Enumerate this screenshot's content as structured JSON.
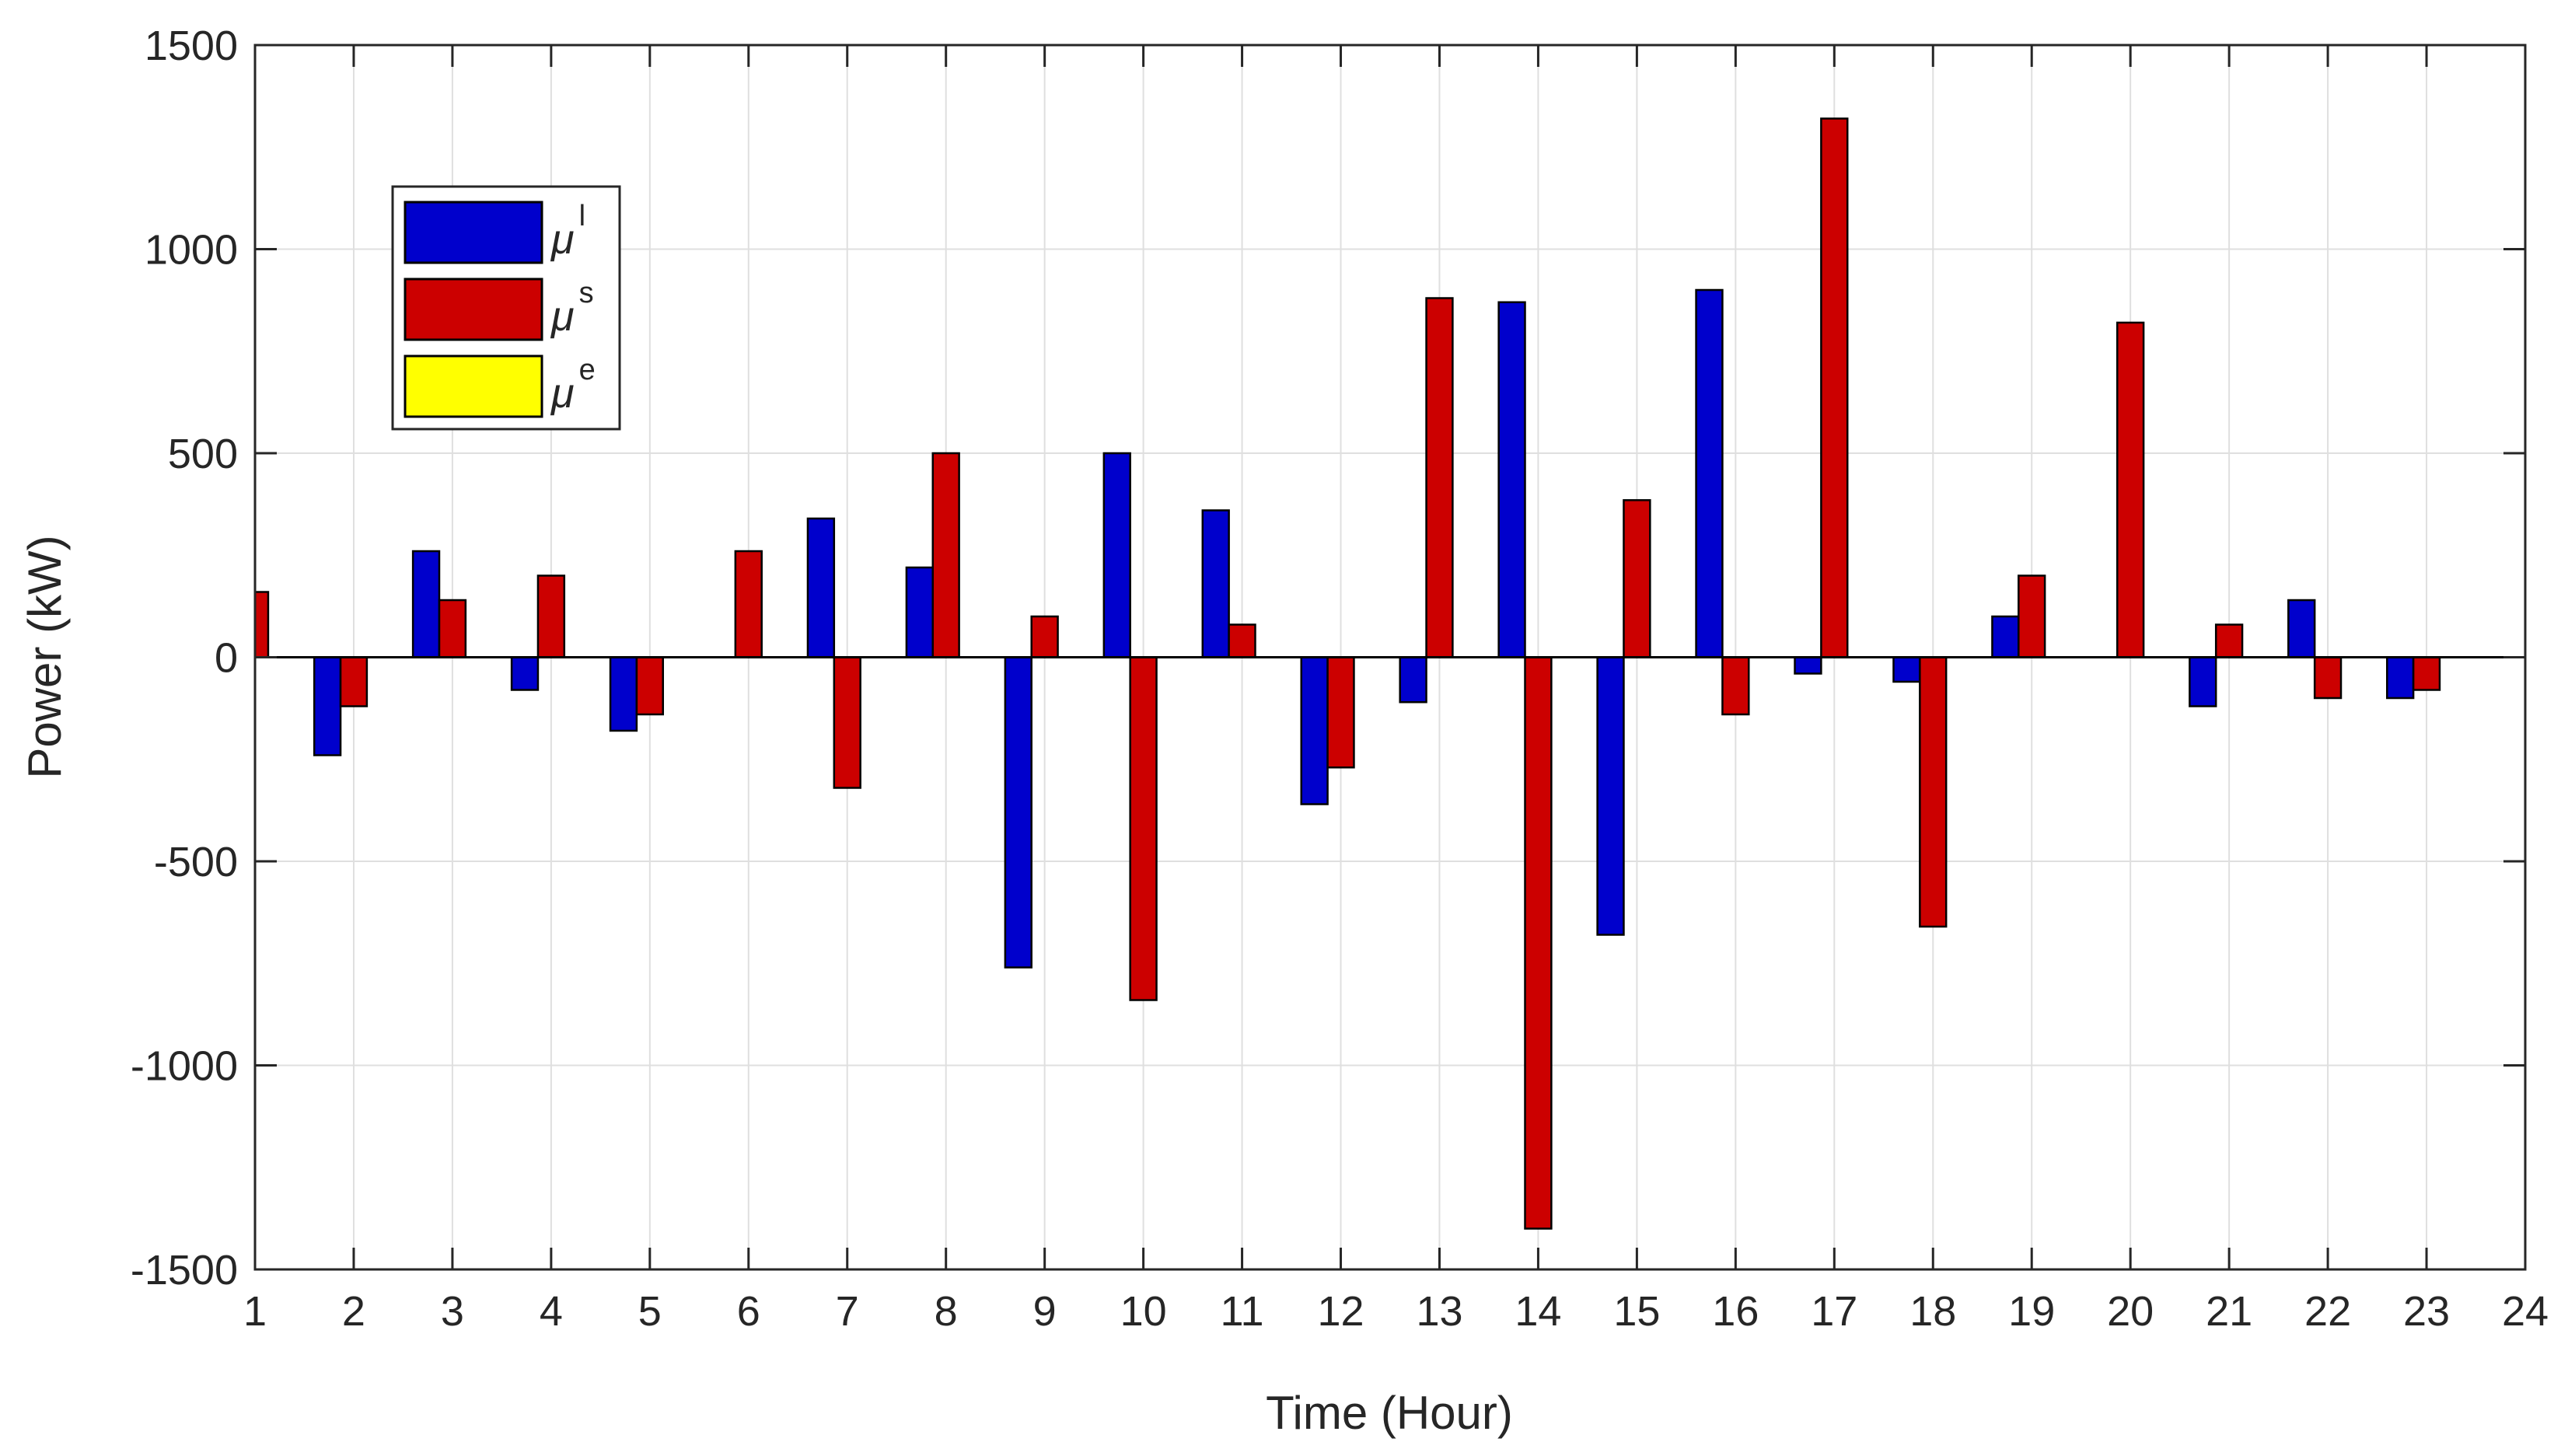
{
  "chart_data": {
    "type": "bar",
    "xlabel": "Time (Hour)",
    "ylabel": "Power (kW)",
    "xlim": [
      1,
      24
    ],
    "ylim": [
      -1500,
      1500
    ],
    "x_ticks": [
      1,
      2,
      3,
      4,
      5,
      6,
      7,
      8,
      9,
      10,
      11,
      12,
      13,
      14,
      15,
      16,
      17,
      18,
      19,
      20,
      21,
      22,
      23,
      24
    ],
    "y_ticks": [
      -1500,
      -1000,
      -500,
      0,
      500,
      1000,
      1500
    ],
    "grid": true,
    "legend_position": "top-left",
    "categories": [
      1,
      2,
      3,
      4,
      5,
      6,
      7,
      8,
      9,
      10,
      11,
      12,
      13,
      14,
      15,
      16,
      17,
      18,
      19,
      20,
      21,
      22,
      23,
      24
    ],
    "series": [
      {
        "name": "μl",
        "symbol": "μ",
        "superscript": "l",
        "color": "#0000CC",
        "values": [
          0,
          -240,
          260,
          -80,
          -180,
          0,
          340,
          220,
          -760,
          500,
          360,
          -360,
          -110,
          870,
          -680,
          900,
          -40,
          -60,
          100,
          0,
          -120,
          140,
          -100,
          0
        ]
      },
      {
        "name": "μs",
        "symbol": "μ",
        "superscript": "s",
        "color": "#CC0000",
        "values": [
          160,
          -120,
          140,
          200,
          -140,
          260,
          -320,
          500,
          100,
          -840,
          80,
          -270,
          880,
          -1400,
          385,
          -140,
          1320,
          -660,
          200,
          820,
          80,
          -100,
          -80,
          0
        ]
      },
      {
        "name": "μe",
        "symbol": "μ",
        "superscript": "e",
        "color": "#FFFF00",
        "values": [
          0,
          0,
          0,
          0,
          0,
          0,
          0,
          0,
          0,
          0,
          0,
          0,
          0,
          0,
          0,
          0,
          0,
          0,
          0,
          0,
          0,
          0,
          0,
          0
        ]
      }
    ]
  }
}
